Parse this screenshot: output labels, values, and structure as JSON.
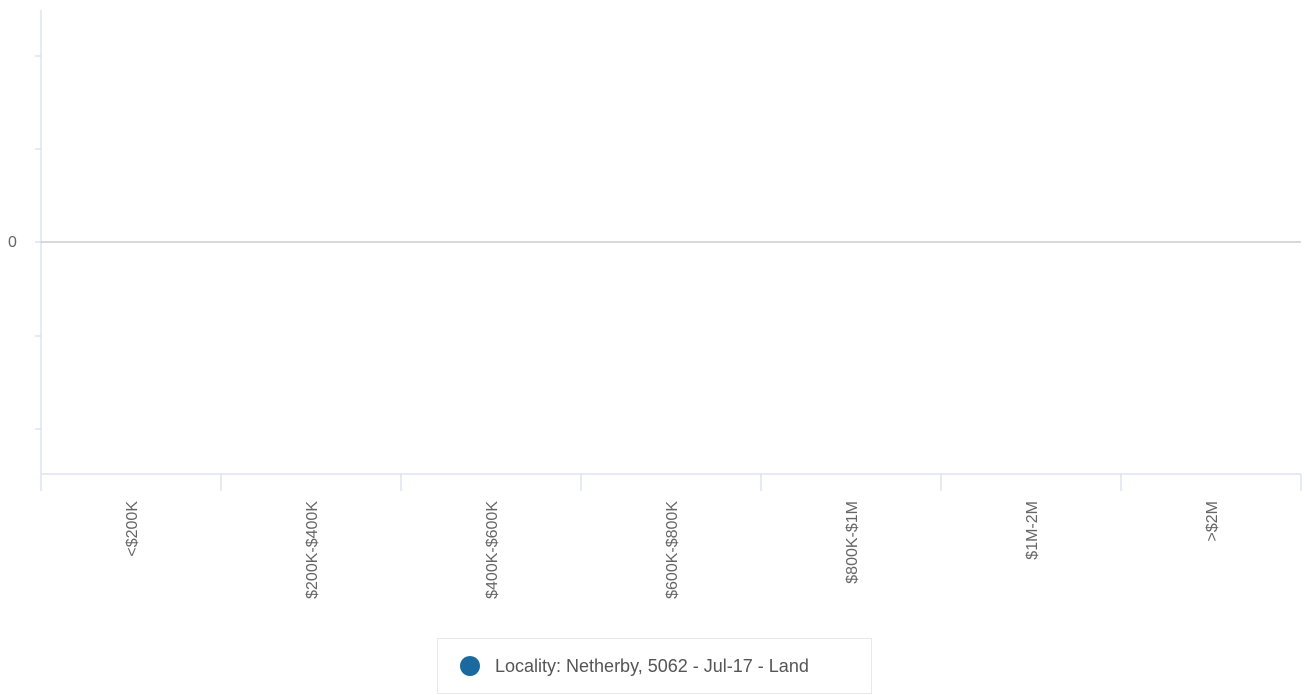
{
  "chart_data": {
    "type": "bar",
    "categories": [
      "<$200K",
      "$200K-$400K",
      "$400K-$600K",
      "$600K-$800K",
      "$800K-$1M",
      "$1M-2M",
      ">$2M"
    ],
    "series": [
      {
        "name": "Locality: Netherby, 5062 - Jul-17 - Land",
        "values": [
          0,
          0,
          0,
          0,
          0,
          0,
          0
        ],
        "color": "#1a6aa0"
      }
    ],
    "title": "",
    "xlabel": "",
    "ylabel": "",
    "y_ticks": [
      0
    ],
    "grid": false,
    "legend_position": "bottom-center"
  },
  "colors": {
    "axis": "#ccd6eb",
    "zero_line": "#b3b3b3",
    "tick_text": "#666666"
  }
}
